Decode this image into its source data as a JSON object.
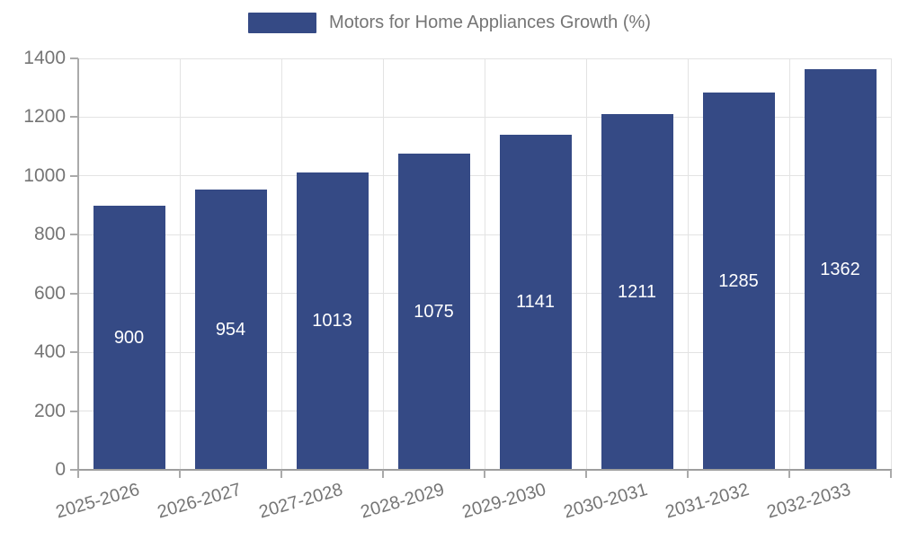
{
  "chart_data": {
    "type": "bar",
    "title": "Motors for Home Appliances Growth (%)",
    "categories": [
      "2025-2026",
      "2026-2027",
      "2027-2028",
      "2028-2029",
      "2029-2030",
      "2030-2031",
      "2031-2032",
      "2032-2033"
    ],
    "values": [
      900,
      954,
      1013,
      1075,
      1141,
      1211,
      1285,
      1362
    ],
    "xlabel": "",
    "ylabel": "",
    "ylim": [
      0,
      1400
    ],
    "yticks": [
      0,
      200,
      400,
      600,
      800,
      1000,
      1200,
      1400
    ],
    "grid": true,
    "legend_position": "top",
    "colors": {
      "bar": "#354a85",
      "grid": "#e3e3e3",
      "axis": "#9e9e9e",
      "tick_label": "#757575",
      "value_label": "#ffffff"
    }
  }
}
